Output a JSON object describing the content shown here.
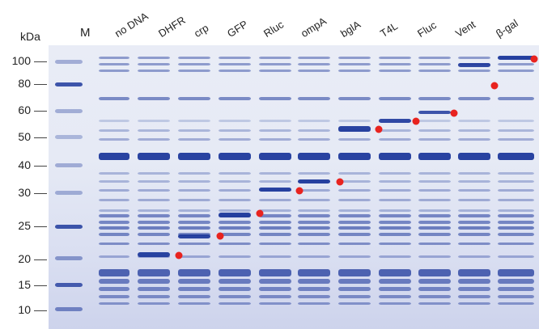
{
  "figure": {
    "unit_label": "kDa",
    "marker_label": "M",
    "molecular_weights": [
      "100",
      "80",
      "60",
      "50",
      "40",
      "30",
      "25",
      "20",
      "15",
      "10"
    ],
    "lanes": [
      "no DNA",
      "DHFR",
      "crp",
      "GFP",
      "Rluc",
      "ompA",
      "bglA",
      "T4L",
      "Fluc",
      "Vent",
      "β-gal"
    ],
    "band_color": "#1f3a9c",
    "marker_dot_color": "#e8231f"
  }
}
